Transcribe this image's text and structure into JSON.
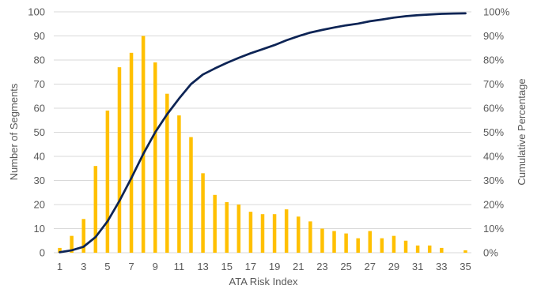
{
  "chart_data": {
    "type": "bar",
    "xlabel": "ATA Risk Index",
    "ylabel": "Number of Segments",
    "y2label": "Cumulative Percentage",
    "x": [
      1,
      2,
      3,
      4,
      5,
      6,
      7,
      8,
      9,
      10,
      11,
      12,
      13,
      14,
      15,
      16,
      17,
      18,
      19,
      20,
      21,
      22,
      23,
      24,
      25,
      26,
      27,
      28,
      29,
      30,
      31,
      32,
      33,
      34,
      35
    ],
    "x_tick_labels": [
      "1",
      "3",
      "5",
      "7",
      "9",
      "11",
      "13",
      "15",
      "17",
      "19",
      "21",
      "23",
      "25",
      "27",
      "29",
      "31",
      "33",
      "35"
    ],
    "ylim": [
      0,
      100
    ],
    "y_ticks": [
      "0",
      "10",
      "20",
      "30",
      "40",
      "50",
      "60",
      "70",
      "80",
      "90",
      "100"
    ],
    "y2lim": [
      0,
      100
    ],
    "y2_ticks": [
      "0%",
      "10%",
      "20%",
      "30%",
      "40%",
      "50%",
      "60%",
      "70%",
      "80%",
      "90%",
      "100%"
    ],
    "grid": true,
    "series": [
      {
        "type": "bar",
        "axis": "left",
        "color": "#FFC000",
        "values": [
          2,
          7,
          14,
          36,
          59,
          77,
          83,
          90,
          79,
          66,
          57,
          48,
          33,
          24,
          21,
          20,
          17,
          16,
          16,
          18,
          15,
          13,
          10,
          9,
          8,
          6,
          9,
          6,
          7,
          5,
          3,
          3,
          2,
          0,
          1
        ]
      },
      {
        "type": "line",
        "axis": "right",
        "color": "#0D2455",
        "values": [
          0.2,
          1,
          2.5,
          6.5,
          13,
          21.5,
          31,
          41,
          50,
          57.5,
          64,
          70,
          74,
          76.5,
          78.8,
          80.9,
          82.8,
          84.5,
          86.2,
          88.2,
          89.9,
          91.4,
          92.5,
          93.5,
          94.4,
          95.1,
          96.1,
          96.8,
          97.6,
          98.2,
          98.6,
          98.9,
          99.2,
          99.3,
          99.4
        ]
      }
    ]
  }
}
